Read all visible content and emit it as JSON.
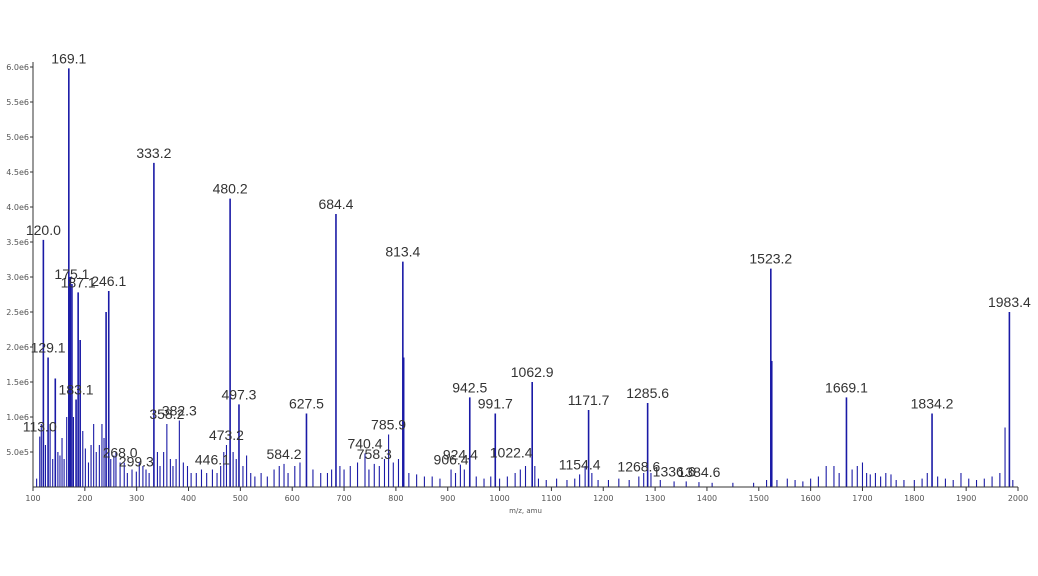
{
  "chart_data": {
    "type": "bar",
    "title": "",
    "xlabel": "m/z, amu",
    "ylabel": "",
    "xlim": [
      100,
      2000
    ],
    "ylim": [
      0,
      6.0
    ],
    "grid": false,
    "legend": "none",
    "colors": {
      "peak": "#1a1aa6",
      "axis": "#333333",
      "label": "#333333"
    },
    "x_ticks": [
      100,
      200,
      300,
      400,
      500,
      600,
      700,
      800,
      900,
      1000,
      1100,
      1200,
      1300,
      1400,
      1500,
      1600,
      1700,
      1800,
      1900,
      2000
    ],
    "x_tick_labels": [
      "100",
      "200",
      "300",
      "400",
      "500",
      "600",
      "700",
      "800",
      "900",
      "1000",
      "1100",
      "1200",
      "1300",
      "1400",
      "1500",
      "1600",
      "1700",
      "1800",
      "1900",
      "2000"
    ],
    "y_ticks": [
      0.5,
      1.0,
      1.5,
      2.0,
      2.5,
      3.0,
      3.5,
      4.0,
      4.5,
      5.0,
      5.5,
      6.0
    ],
    "y_tick_labels": [
      "5.0e5",
      "1.0e6",
      "1.5e6",
      "2.0e6",
      "2.5e6",
      "3.0e6",
      "3.5e6",
      "4.0e6",
      "4.5e6",
      "5.0e6",
      "5.5e6",
      "6.0e6"
    ],
    "peaks": [
      {
        "x": 107,
        "y": 0.12
      },
      {
        "x": 113,
        "y": 0.72
      },
      {
        "x": 116,
        "y": 0.9
      },
      {
        "x": 120.0,
        "y": 3.53
      },
      {
        "x": 124,
        "y": 0.6
      },
      {
        "x": 129.1,
        "y": 1.85
      },
      {
        "x": 133,
        "y": 0.9
      },
      {
        "x": 138,
        "y": 0.4
      },
      {
        "x": 143,
        "y": 1.55
      },
      {
        "x": 148,
        "y": 0.5
      },
      {
        "x": 152,
        "y": 0.45
      },
      {
        "x": 156,
        "y": 0.7
      },
      {
        "x": 160,
        "y": 0.4
      },
      {
        "x": 165,
        "y": 1.0
      },
      {
        "x": 169.1,
        "y": 5.98
      },
      {
        "x": 172,
        "y": 3.0
      },
      {
        "x": 175.1,
        "y": 2.9
      },
      {
        "x": 178,
        "y": 1.0
      },
      {
        "x": 183.1,
        "y": 1.25
      },
      {
        "x": 187.1,
        "y": 2.78
      },
      {
        "x": 191,
        "y": 2.1
      },
      {
        "x": 196,
        "y": 0.8
      },
      {
        "x": 201,
        "y": 0.55
      },
      {
        "x": 207,
        "y": 0.35
      },
      {
        "x": 212,
        "y": 0.6
      },
      {
        "x": 217,
        "y": 0.9
      },
      {
        "x": 222,
        "y": 0.5
      },
      {
        "x": 228,
        "y": 0.6
      },
      {
        "x": 233,
        "y": 0.9
      },
      {
        "x": 237,
        "y": 0.7
      },
      {
        "x": 241,
        "y": 2.5
      },
      {
        "x": 246.1,
        "y": 2.8
      },
      {
        "x": 250,
        "y": 0.4
      },
      {
        "x": 256,
        "y": 0.45
      },
      {
        "x": 260,
        "y": 0.5
      },
      {
        "x": 268.0,
        "y": 0.35
      },
      {
        "x": 276,
        "y": 0.35
      },
      {
        "x": 282,
        "y": 0.2
      },
      {
        "x": 291,
        "y": 0.25
      },
      {
        "x": 299.3,
        "y": 0.22
      },
      {
        "x": 305,
        "y": 0.35
      },
      {
        "x": 312,
        "y": 0.3
      },
      {
        "x": 318,
        "y": 0.25
      },
      {
        "x": 324,
        "y": 0.2
      },
      {
        "x": 333.2,
        "y": 4.63
      },
      {
        "x": 340,
        "y": 0.5
      },
      {
        "x": 345,
        "y": 0.3
      },
      {
        "x": 352,
        "y": 0.5
      },
      {
        "x": 358.2,
        "y": 0.9
      },
      {
        "x": 365,
        "y": 0.4
      },
      {
        "x": 370,
        "y": 0.3
      },
      {
        "x": 376,
        "y": 0.4
      },
      {
        "x": 382.3,
        "y": 0.95
      },
      {
        "x": 390,
        "y": 0.35
      },
      {
        "x": 398,
        "y": 0.3
      },
      {
        "x": 405,
        "y": 0.2
      },
      {
        "x": 415,
        "y": 0.2
      },
      {
        "x": 425,
        "y": 0.25
      },
      {
        "x": 435,
        "y": 0.2
      },
      {
        "x": 446.1,
        "y": 0.25
      },
      {
        "x": 455,
        "y": 0.2
      },
      {
        "x": 462,
        "y": 0.3
      },
      {
        "x": 468,
        "y": 0.5
      },
      {
        "x": 473.2,
        "y": 0.6
      },
      {
        "x": 480.2,
        "y": 4.12
      },
      {
        "x": 486,
        "y": 0.5
      },
      {
        "x": 492,
        "y": 0.4
      },
      {
        "x": 497.3,
        "y": 1.18
      },
      {
        "x": 505,
        "y": 0.3
      },
      {
        "x": 512,
        "y": 0.45
      },
      {
        "x": 520,
        "y": 0.2
      },
      {
        "x": 528,
        "y": 0.15
      },
      {
        "x": 540,
        "y": 0.2
      },
      {
        "x": 552,
        "y": 0.15
      },
      {
        "x": 565,
        "y": 0.25
      },
      {
        "x": 575,
        "y": 0.3
      },
      {
        "x": 584.2,
        "y": 0.33
      },
      {
        "x": 592,
        "y": 0.2
      },
      {
        "x": 605,
        "y": 0.3
      },
      {
        "x": 615,
        "y": 0.35
      },
      {
        "x": 627.5,
        "y": 1.05
      },
      {
        "x": 640,
        "y": 0.25
      },
      {
        "x": 655,
        "y": 0.2
      },
      {
        "x": 668,
        "y": 0.2
      },
      {
        "x": 676,
        "y": 0.25
      },
      {
        "x": 684.4,
        "y": 3.9
      },
      {
        "x": 692,
        "y": 0.3
      },
      {
        "x": 700,
        "y": 0.25
      },
      {
        "x": 712,
        "y": 0.3
      },
      {
        "x": 726,
        "y": 0.35
      },
      {
        "x": 740.4,
        "y": 0.48
      },
      {
        "x": 748,
        "y": 0.25
      },
      {
        "x": 758.3,
        "y": 0.33
      },
      {
        "x": 768,
        "y": 0.3
      },
      {
        "x": 778,
        "y": 0.4
      },
      {
        "x": 785.9,
        "y": 0.75
      },
      {
        "x": 795,
        "y": 0.35
      },
      {
        "x": 805,
        "y": 0.4
      },
      {
        "x": 813.4,
        "y": 3.22
      },
      {
        "x": 815,
        "y": 1.85
      },
      {
        "x": 825,
        "y": 0.2
      },
      {
        "x": 840,
        "y": 0.18
      },
      {
        "x": 855,
        "y": 0.15
      },
      {
        "x": 870,
        "y": 0.15
      },
      {
        "x": 885,
        "y": 0.12
      },
      {
        "x": 906.4,
        "y": 0.25
      },
      {
        "x": 915,
        "y": 0.2
      },
      {
        "x": 924.4,
        "y": 0.32
      },
      {
        "x": 932,
        "y": 0.25
      },
      {
        "x": 942.5,
        "y": 1.28
      },
      {
        "x": 955,
        "y": 0.15
      },
      {
        "x": 970,
        "y": 0.12
      },
      {
        "x": 983,
        "y": 0.15
      },
      {
        "x": 991.7,
        "y": 1.05
      },
      {
        "x": 1000,
        "y": 0.12
      },
      {
        "x": 1015,
        "y": 0.15
      },
      {
        "x": 1030,
        "y": 0.2
      },
      {
        "x": 1040,
        "y": 0.25
      },
      {
        "x": 1050,
        "y": 0.3
      },
      {
        "x": 1062.9,
        "y": 1.5
      },
      {
        "x": 1068,
        "y": 0.3
      },
      {
        "x": 1075,
        "y": 0.12
      },
      {
        "x": 1090,
        "y": 0.1
      },
      {
        "x": 1110,
        "y": 0.12
      },
      {
        "x": 1130,
        "y": 0.1
      },
      {
        "x": 1145,
        "y": 0.12
      },
      {
        "x": 1154.4,
        "y": 0.18
      },
      {
        "x": 1165,
        "y": 0.3
      },
      {
        "x": 1171.7,
        "y": 1.1
      },
      {
        "x": 1178,
        "y": 0.2
      },
      {
        "x": 1190,
        "y": 0.1
      },
      {
        "x": 1210,
        "y": 0.1
      },
      {
        "x": 1230,
        "y": 0.12
      },
      {
        "x": 1250,
        "y": 0.1
      },
      {
        "x": 1268.6,
        "y": 0.15
      },
      {
        "x": 1278,
        "y": 0.2
      },
      {
        "x": 1285.6,
        "y": 1.2
      },
      {
        "x": 1292,
        "y": 0.2
      },
      {
        "x": 1310,
        "y": 0.1
      },
      {
        "x": 1336.6,
        "y": 0.08
      },
      {
        "x": 1360,
        "y": 0.08
      },
      {
        "x": 1384.6,
        "y": 0.07
      },
      {
        "x": 1410,
        "y": 0.06
      },
      {
        "x": 1450,
        "y": 0.06
      },
      {
        "x": 1490,
        "y": 0.06
      },
      {
        "x": 1515,
        "y": 0.1
      },
      {
        "x": 1523.2,
        "y": 3.12
      },
      {
        "x": 1525,
        "y": 1.8
      },
      {
        "x": 1535,
        "y": 0.1
      },
      {
        "x": 1555,
        "y": 0.12
      },
      {
        "x": 1570,
        "y": 0.1
      },
      {
        "x": 1585,
        "y": 0.08
      },
      {
        "x": 1600,
        "y": 0.12
      },
      {
        "x": 1615,
        "y": 0.15
      },
      {
        "x": 1630,
        "y": 0.3
      },
      {
        "x": 1645,
        "y": 0.3
      },
      {
        "x": 1655,
        "y": 0.2
      },
      {
        "x": 1669.1,
        "y": 1.28
      },
      {
        "x": 1680,
        "y": 0.25
      },
      {
        "x": 1690,
        "y": 0.3
      },
      {
        "x": 1700,
        "y": 0.35
      },
      {
        "x": 1708,
        "y": 0.2
      },
      {
        "x": 1715,
        "y": 0.18
      },
      {
        "x": 1725,
        "y": 0.2
      },
      {
        "x": 1735,
        "y": 0.15
      },
      {
        "x": 1745,
        "y": 0.2
      },
      {
        "x": 1755,
        "y": 0.18
      },
      {
        "x": 1765,
        "y": 0.1
      },
      {
        "x": 1780,
        "y": 0.1
      },
      {
        "x": 1800,
        "y": 0.1
      },
      {
        "x": 1815,
        "y": 0.12
      },
      {
        "x": 1825,
        "y": 0.2
      },
      {
        "x": 1834.2,
        "y": 1.05
      },
      {
        "x": 1845,
        "y": 0.15
      },
      {
        "x": 1860,
        "y": 0.12
      },
      {
        "x": 1875,
        "y": 0.1
      },
      {
        "x": 1890,
        "y": 0.2
      },
      {
        "x": 1905,
        "y": 0.12
      },
      {
        "x": 1920,
        "y": 0.1
      },
      {
        "x": 1935,
        "y": 0.12
      },
      {
        "x": 1950,
        "y": 0.15
      },
      {
        "x": 1965,
        "y": 0.2
      },
      {
        "x": 1975,
        "y": 0.85
      },
      {
        "x": 1983.4,
        "y": 2.5
      },
      {
        "x": 1990,
        "y": 0.1
      }
    ],
    "annotations": [
      {
        "text": "169.1",
        "x": 169.1,
        "y": 5.98
      },
      {
        "text": "333.2",
        "x": 333.2,
        "y": 4.63
      },
      {
        "text": "480.2",
        "x": 480.2,
        "y": 4.12
      },
      {
        "text": "684.4",
        "x": 684.4,
        "y": 3.9
      },
      {
        "text": "120.0",
        "x": 120.0,
        "y": 3.53
      },
      {
        "text": "813.4",
        "x": 813.4,
        "y": 3.22
      },
      {
        "text": "1523.2",
        "x": 1523.2,
        "y": 3.12
      },
      {
        "text": "175.1",
        "x": 175.1,
        "y": 2.9
      },
      {
        "text": "187.1",
        "x": 187.1,
        "y": 2.78
      },
      {
        "text": "246.1",
        "x": 246.1,
        "y": 2.8
      },
      {
        "text": "1983.4",
        "x": 1983.4,
        "y": 2.5
      },
      {
        "text": "129.1",
        "x": 129.1,
        "y": 1.85
      },
      {
        "text": "1062.9",
        "x": 1062.9,
        "y": 1.5
      },
      {
        "text": "183.1",
        "x": 183.1,
        "y": 1.25
      },
      {
        "text": "942.5",
        "x": 942.5,
        "y": 1.28
      },
      {
        "text": "1669.1",
        "x": 1669.1,
        "y": 1.28
      },
      {
        "text": "1285.6",
        "x": 1285.6,
        "y": 1.2
      },
      {
        "text": "497.3",
        "x": 497.3,
        "y": 1.18
      },
      {
        "text": "1171.7",
        "x": 1171.7,
        "y": 1.1
      },
      {
        "text": "991.7",
        "x": 991.7,
        "y": 1.05
      },
      {
        "text": "627.5",
        "x": 627.5,
        "y": 1.05
      },
      {
        "text": "1834.2",
        "x": 1834.2,
        "y": 1.05
      },
      {
        "text": "358.2",
        "x": 358.2,
        "y": 0.9
      },
      {
        "text": "382.3",
        "x": 382.3,
        "y": 0.95
      },
      {
        "text": "785.9",
        "x": 785.9,
        "y": 0.75
      },
      {
        "text": "113.0",
        "x": 113.0,
        "y": 0.72
      },
      {
        "text": "473.2",
        "x": 473.2,
        "y": 0.6
      },
      {
        "text": "740.4",
        "x": 740.4,
        "y": 0.48
      },
      {
        "text": "1022.4",
        "x": 1022.4,
        "y": 0.35
      },
      {
        "text": "268.0",
        "x": 268.0,
        "y": 0.35
      },
      {
        "text": "906.4",
        "x": 906.4,
        "y": 0.25
      },
      {
        "text": "924.4",
        "x": 924.4,
        "y": 0.32
      },
      {
        "text": "758.3",
        "x": 758.3,
        "y": 0.33
      },
      {
        "text": "584.2",
        "x": 584.2,
        "y": 0.33
      },
      {
        "text": "1154.4",
        "x": 1154.4,
        "y": 0.18
      },
      {
        "text": "1268.6",
        "x": 1268.6,
        "y": 0.15
      },
      {
        "text": "1336.6",
        "x": 1336.6,
        "y": 0.08
      },
      {
        "text": "1384.6",
        "x": 1384.6,
        "y": 0.07
      },
      {
        "text": "299.3",
        "x": 299.3,
        "y": 0.22
      },
      {
        "text": "446.1",
        "x": 446.1,
        "y": 0.25
      }
    ]
  }
}
